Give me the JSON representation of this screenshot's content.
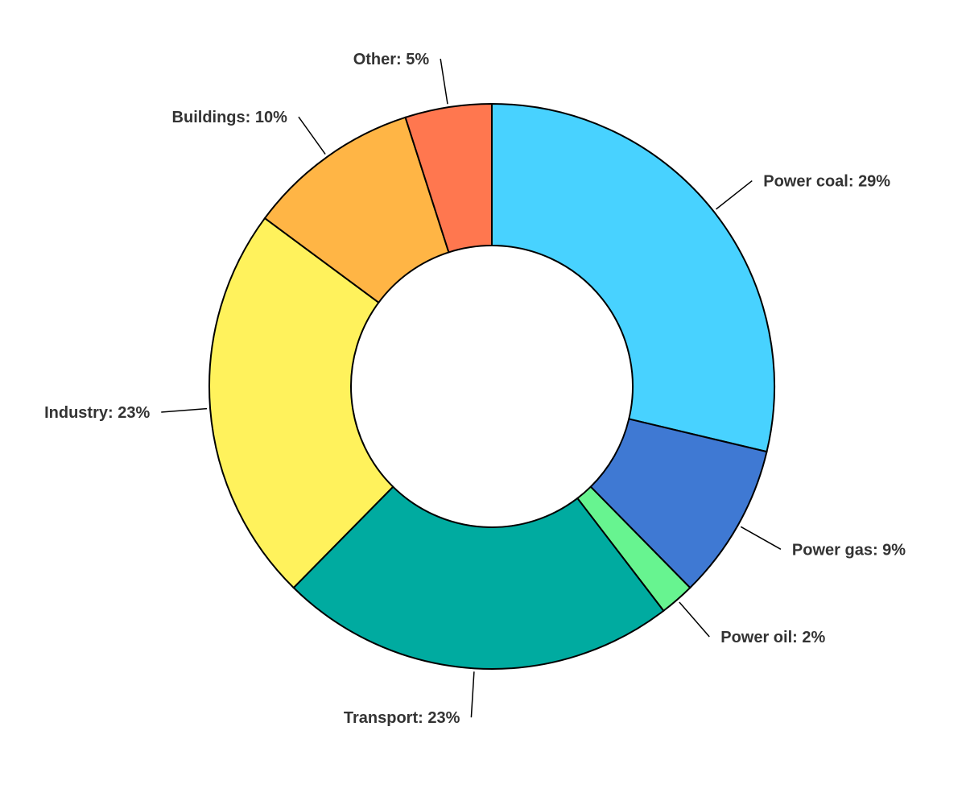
{
  "chart_data": {
    "type": "pie",
    "variant": "donut",
    "title": "",
    "slices": [
      {
        "name": "Power coal",
        "value": 29,
        "label": "Power coal: 29%",
        "color": "#48D2FF"
      },
      {
        "name": "Power gas",
        "value": 9,
        "label": "Power gas: 9%",
        "color": "#3F79D3"
      },
      {
        "name": "Power oil",
        "value": 2,
        "label": "Power oil: 2%",
        "color": "#67F490"
      },
      {
        "name": "Transport",
        "value": 23,
        "label": "Transport: 23%",
        "color": "#00ABA0"
      },
      {
        "name": "Industry",
        "value": 23,
        "label": "Industry: 23%",
        "color": "#FFF25C"
      },
      {
        "name": "Buildings",
        "value": 10,
        "label": "Buildings: 10%",
        "color": "#FFB545"
      },
      {
        "name": "Other",
        "value": 5,
        "label": "Other: 5%",
        "color": "#FF774F"
      }
    ],
    "legend": "none",
    "start": "top",
    "direction": "clockwise"
  }
}
